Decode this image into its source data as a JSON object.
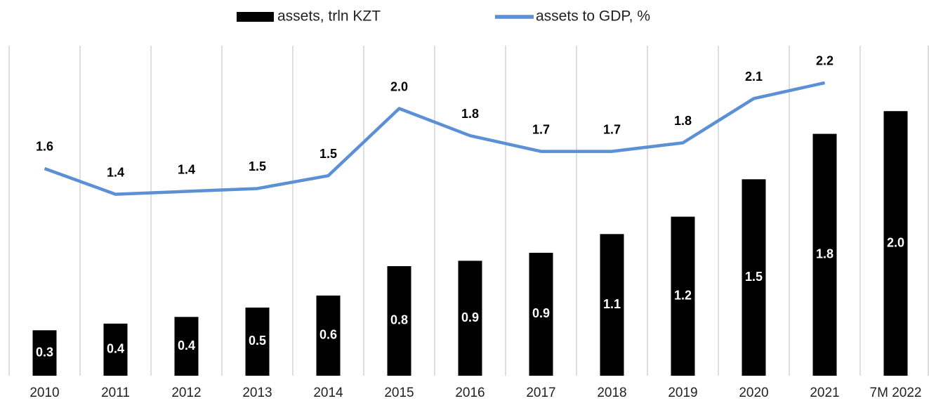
{
  "chart_data": {
    "type": "bar",
    "categories": [
      "2010",
      "2011",
      "2012",
      "2013",
      "2014",
      "2015",
      "2016",
      "2017",
      "2018",
      "2019",
      "2020",
      "2021",
      "7M 2022"
    ],
    "series": [
      {
        "name": "assets, trln KZT",
        "type": "bar",
        "color": "#000000",
        "values": [
          0.34,
          0.39,
          0.44,
          0.51,
          0.6,
          0.82,
          0.86,
          0.92,
          1.06,
          1.19,
          1.47,
          1.81,
          1.98
        ],
        "value_labels": [
          "0.3",
          "0.4",
          "0.4",
          "0.5",
          "0.6",
          "0.8",
          "0.9",
          "0.9",
          "1.1",
          "1.2",
          "1.5",
          "1.8",
          "2.0"
        ]
      },
      {
        "name": "assets to GDP, %",
        "type": "line",
        "axis": "y2",
        "color": "#5b8fd6",
        "values": [
          1.6,
          1.42,
          1.44,
          1.46,
          1.55,
          2.02,
          1.83,
          1.72,
          1.72,
          1.78,
          2.09,
          2.2,
          null
        ],
        "value_labels": [
          "1.6",
          "1.4",
          "1.4",
          "1.5",
          "1.5",
          "2.0",
          "1.8",
          "1.7",
          "1.7",
          "1.8",
          "2.1",
          "2.2",
          null
        ]
      }
    ],
    "ylim": [
      0,
      2.47
    ],
    "y2lim": [
      0.15,
      2.46
    ],
    "legend": "top"
  }
}
